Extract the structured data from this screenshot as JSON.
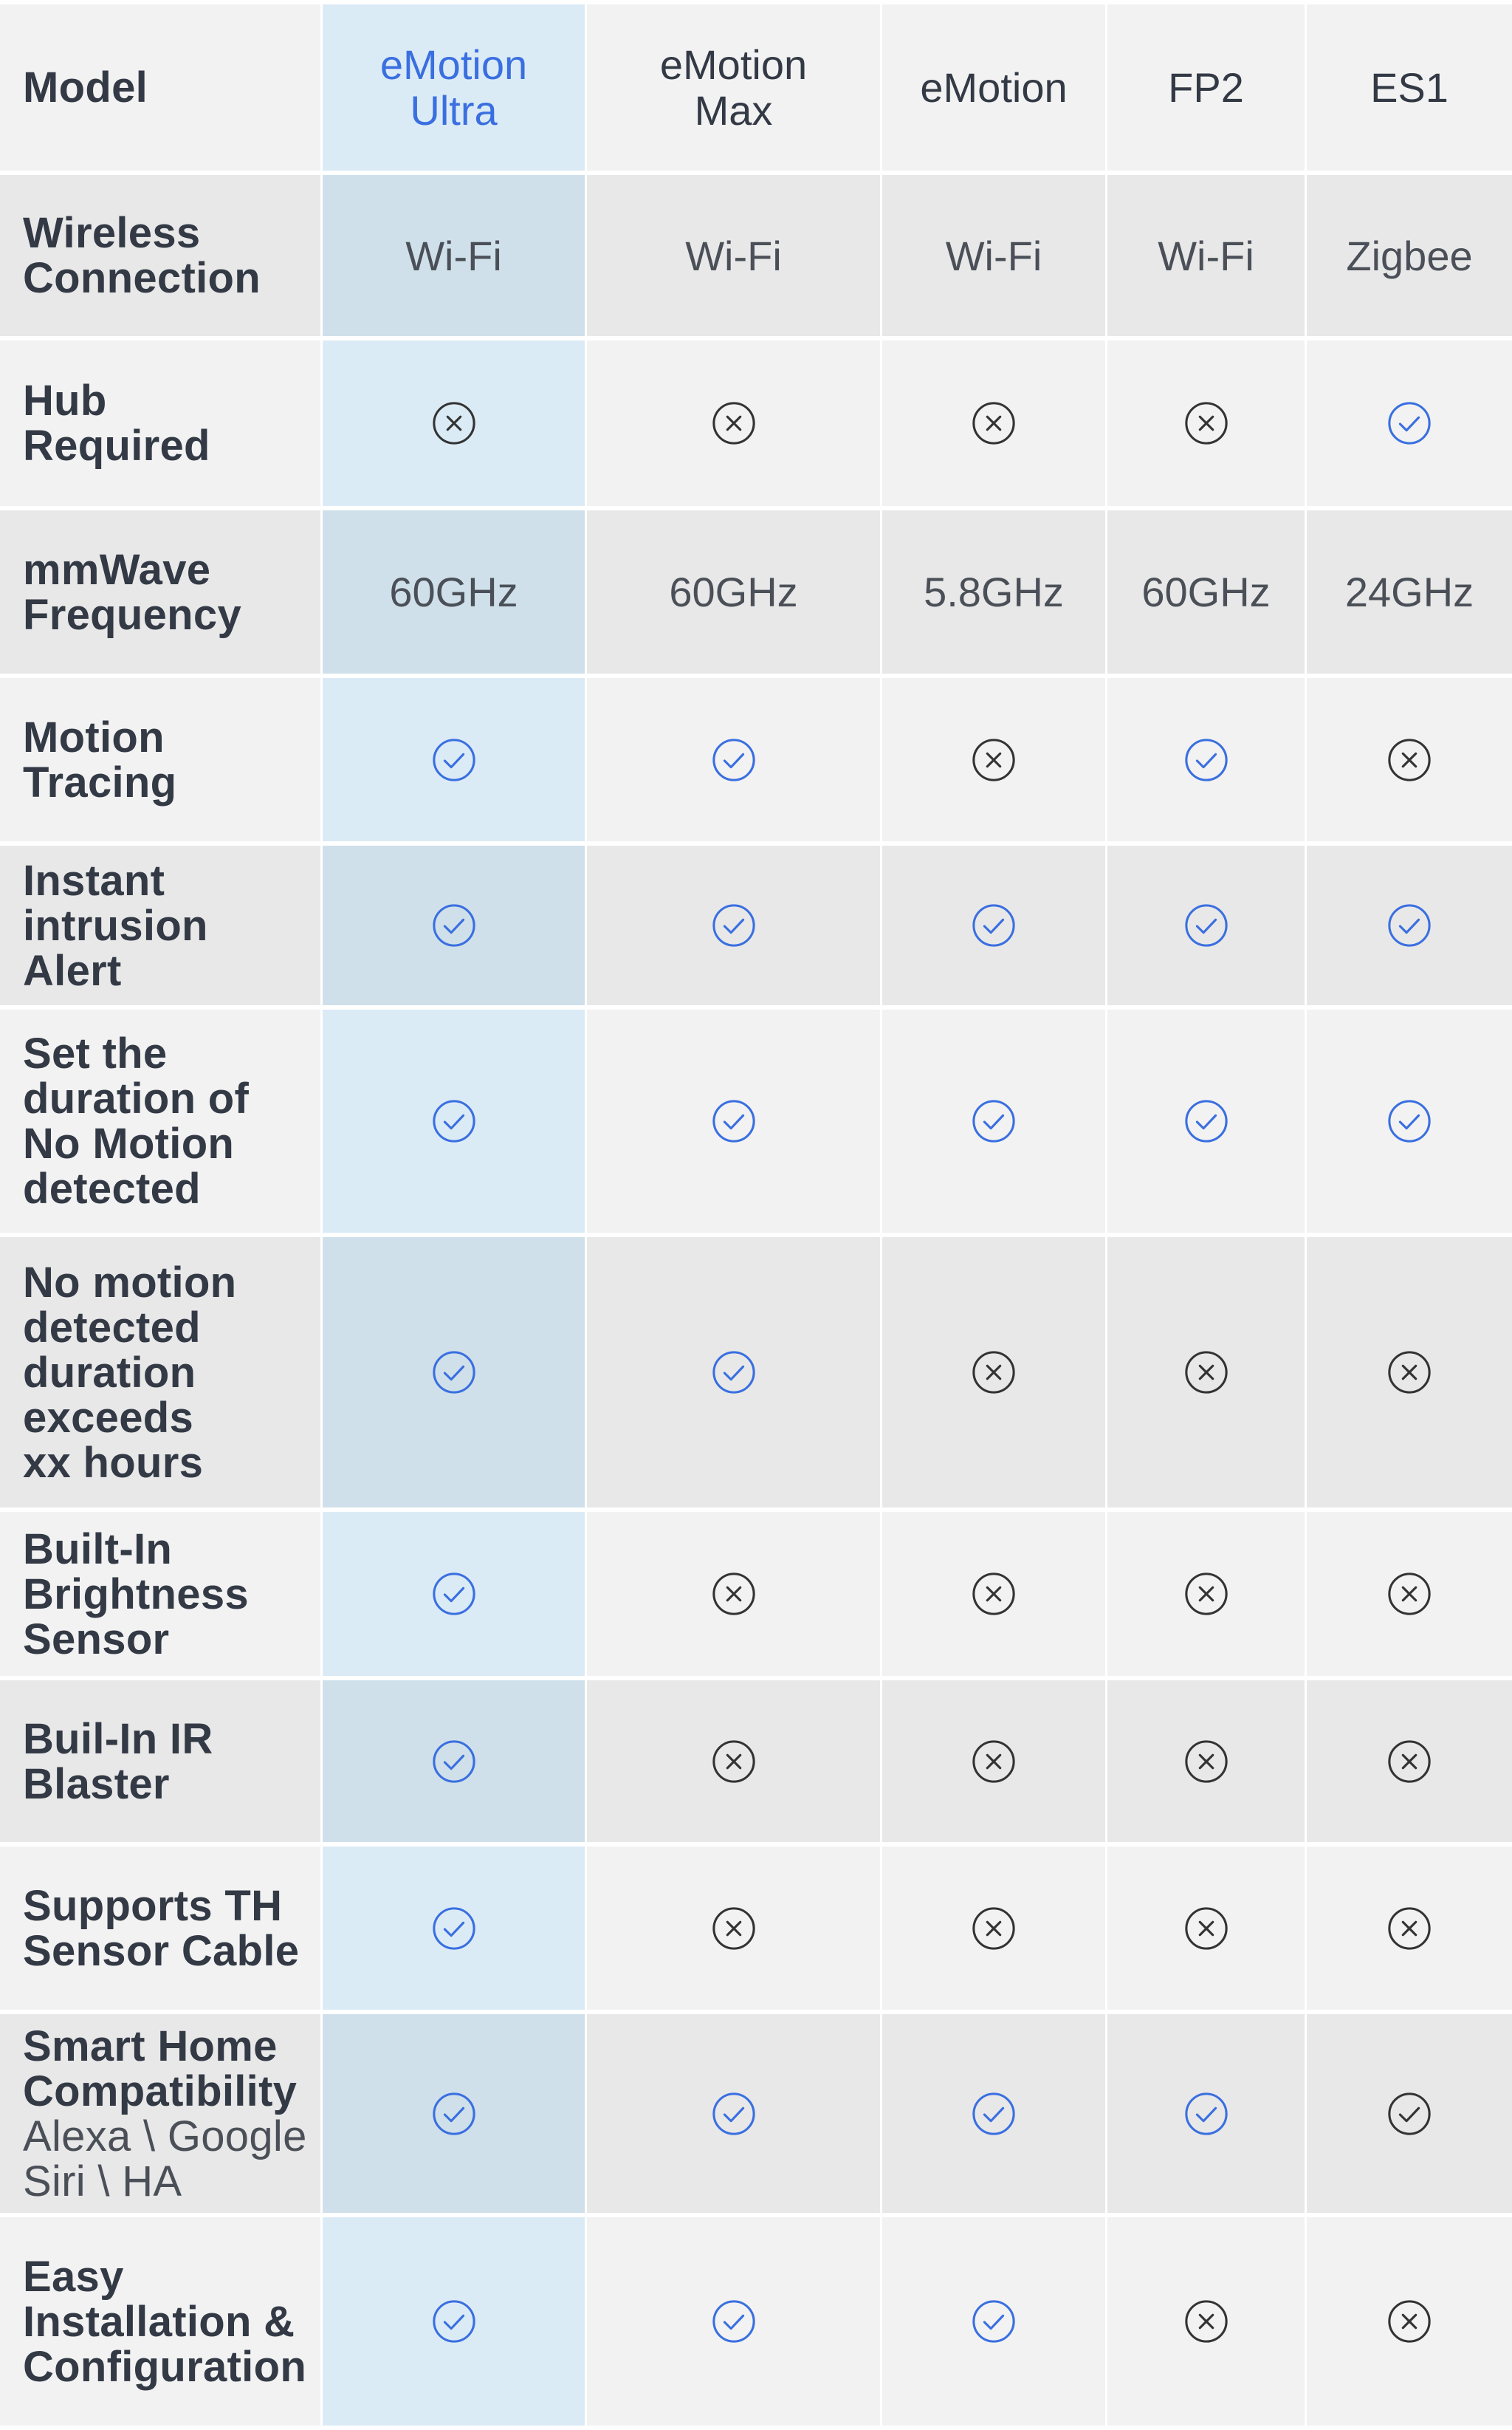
{
  "header": {
    "label": "Model",
    "columns": [
      {
        "line1": "eMotion",
        "line2": "Ultra"
      },
      {
        "line1": "eMotion",
        "line2": "Max"
      },
      {
        "line1": "eMotion",
        "line2": ""
      },
      {
        "line1": "FP2",
        "line2": ""
      },
      {
        "line1": "ES1",
        "line2": ""
      }
    ]
  },
  "colors": {
    "highlight_text": "#3a6fe0",
    "check_icon": "#3a6fe0",
    "cross_icon": "#333333",
    "label_text": "#333a45"
  },
  "rows": [
    {
      "label_lines": [
        "Wireless",
        "Connection"
      ],
      "sub_lines": [],
      "type": "text",
      "values": [
        "Wi-Fi",
        "Wi-Fi",
        "Wi-Fi",
        "Wi-Fi",
        "Zigbee"
      ]
    },
    {
      "label_lines": [
        "Hub",
        "Required"
      ],
      "sub_lines": [],
      "type": "icon",
      "values": [
        "cross",
        "cross",
        "cross",
        "cross",
        "check"
      ]
    },
    {
      "label_lines": [
        "mmWave",
        "Frequency"
      ],
      "sub_lines": [],
      "type": "text",
      "values": [
        "60GHz",
        "60GHz",
        "5.8GHz",
        "60GHz",
        "24GHz"
      ]
    },
    {
      "label_lines": [
        "Motion",
        "Tracing"
      ],
      "sub_lines": [],
      "type": "icon",
      "values": [
        "check",
        "check",
        "cross",
        "check",
        "cross"
      ]
    },
    {
      "label_lines": [
        "Instant",
        "intrusion",
        "Alert"
      ],
      "sub_lines": [],
      "type": "icon",
      "values": [
        "check",
        "check",
        "check",
        "check",
        "check"
      ]
    },
    {
      "label_lines": [
        "Set the",
        "duration of",
        "No Motion",
        "detected"
      ],
      "sub_lines": [],
      "type": "icon",
      "values": [
        "check",
        "check",
        "check",
        "check",
        "check"
      ]
    },
    {
      "label_lines": [
        "No motion",
        "detected",
        "duration",
        "exceeds",
        "xx hours"
      ],
      "sub_lines": [],
      "type": "icon",
      "values": [
        "check",
        "check",
        "cross",
        "cross",
        "cross"
      ]
    },
    {
      "label_lines": [
        "Built-In",
        "Brightness",
        "Sensor"
      ],
      "sub_lines": [],
      "type": "icon",
      "values": [
        "check",
        "cross",
        "cross",
        "cross",
        "cross"
      ]
    },
    {
      "label_lines": [
        "Buil-In IR",
        "Blaster"
      ],
      "sub_lines": [],
      "type": "icon",
      "values": [
        "check",
        "cross",
        "cross",
        "cross",
        "cross"
      ]
    },
    {
      "label_lines": [
        "Supports TH",
        "Sensor Cable"
      ],
      "sub_lines": [],
      "type": "icon",
      "values": [
        "check",
        "cross",
        "cross",
        "cross",
        "cross"
      ]
    },
    {
      "label_lines": [
        "Smart Home",
        "Compatibility"
      ],
      "sub_lines": [
        "Alexa \\ Google",
        "Siri \\ HA"
      ],
      "type": "icon",
      "values": [
        "check",
        "check",
        "check",
        "check",
        "check-dark"
      ]
    },
    {
      "label_lines": [
        "Easy",
        "Installation &",
        "Configuration"
      ],
      "sub_lines": [],
      "type": "icon",
      "values": [
        "check",
        "check",
        "check",
        "cross",
        "cross"
      ]
    }
  ]
}
